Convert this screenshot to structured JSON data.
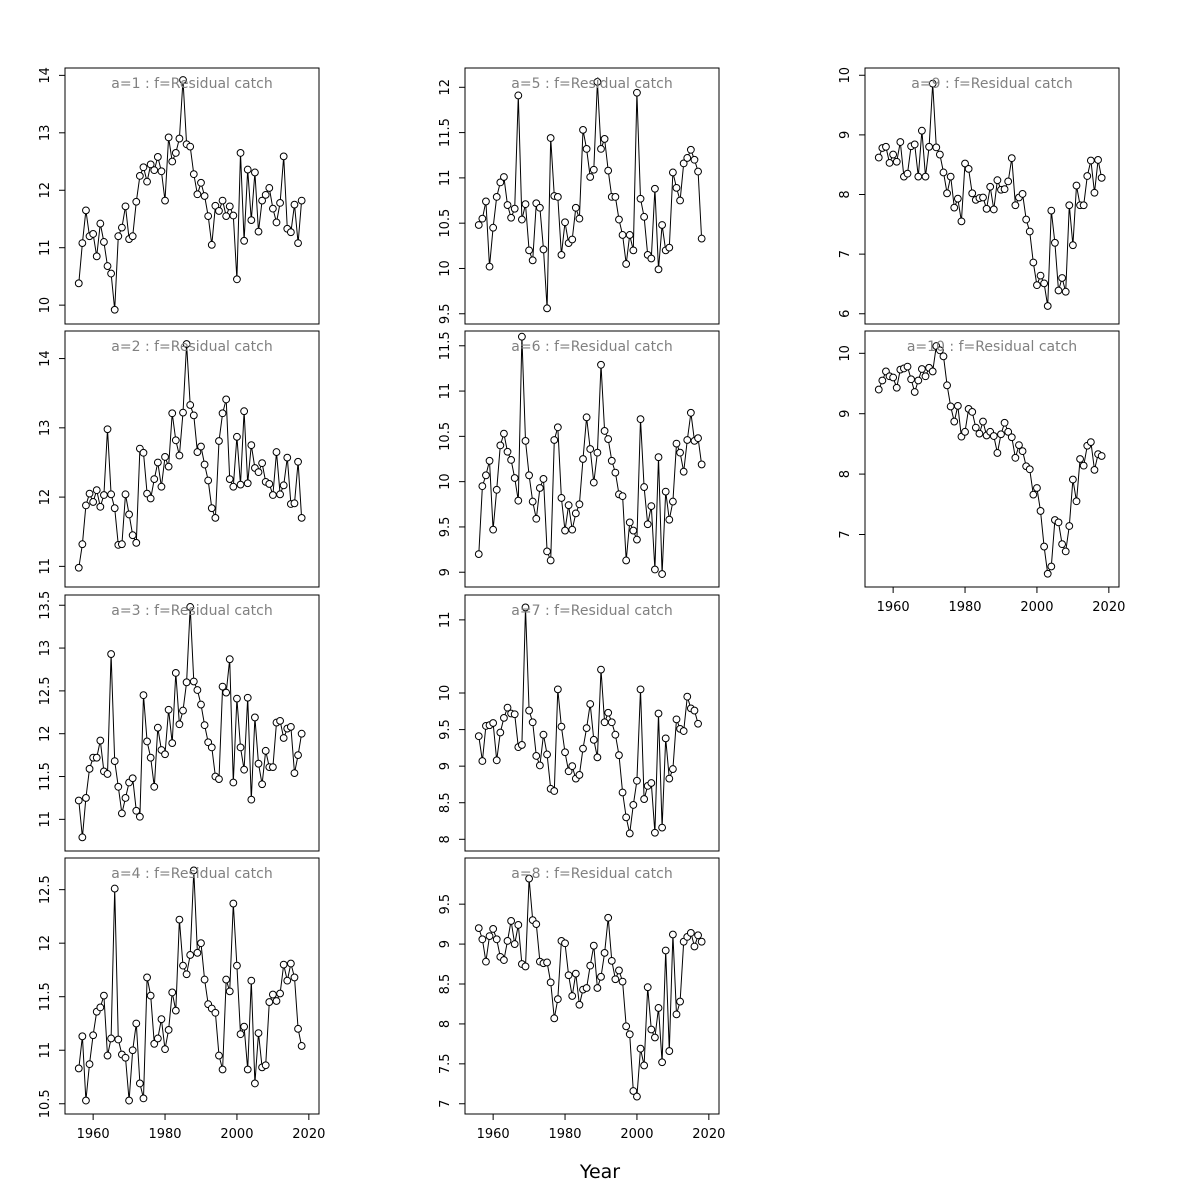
{
  "chart_data": {
    "type": "line",
    "xlabel": "Year",
    "xlim": [
      1955,
      2020
    ],
    "x_ticks": [
      1960,
      1980,
      2000,
      2020
    ],
    "panels": [
      {
        "title": "a=1  :  f=Residual catch",
        "ylim": [
          9.85,
          13.95
        ],
        "y_ticks": [
          10,
          11,
          12,
          13,
          14
        ],
        "values": [
          10.38,
          11.08,
          11.65,
          11.2,
          11.24,
          10.85,
          11.42,
          11.1,
          10.68,
          10.55,
          9.92,
          11.2,
          11.35,
          11.72,
          11.15,
          11.2,
          11.8,
          12.25,
          12.4,
          12.15,
          12.45,
          12.35,
          12.58,
          12.33,
          11.82,
          12.92,
          12.5,
          12.65,
          12.9,
          13.92,
          12.8,
          12.76,
          12.28,
          11.93,
          12.13,
          11.9,
          11.55,
          11.05,
          11.73,
          11.64,
          11.82,
          11.55,
          11.72,
          11.56,
          10.45,
          12.65,
          11.12,
          12.36,
          11.48,
          12.31,
          11.28,
          11.82,
          11.92,
          12.04,
          11.68,
          11.44,
          11.78,
          12.59,
          11.33,
          11.27,
          11.75,
          11.08,
          11.82
        ]
      },
      {
        "title": "a=2  :  f=Residual catch",
        "ylim": [
          10.85,
          14.25
        ],
        "y_ticks": [
          11.0,
          12.0,
          13.0,
          14.0
        ],
        "values": [
          10.98,
          11.32,
          11.88,
          12.05,
          11.93,
          12.1,
          11.86,
          12.03,
          12.98,
          12.04,
          11.84,
          11.31,
          11.32,
          12.04,
          11.75,
          11.45,
          11.34,
          12.7,
          12.64,
          12.05,
          11.98,
          12.26,
          12.5,
          12.15,
          12.58,
          12.44,
          13.21,
          12.82,
          12.6,
          13.22,
          14.21,
          13.33,
          13.18,
          12.65,
          12.73,
          12.47,
          12.24,
          11.84,
          11.7,
          12.81,
          13.21,
          13.41,
          12.26,
          12.15,
          12.87,
          12.18,
          13.24,
          12.2,
          12.75,
          12.42,
          12.36,
          12.49,
          12.22,
          12.19,
          12.03,
          12.65,
          12.04,
          12.17,
          12.57,
          11.9,
          11.91,
          12.51,
          11.7
        ]
      },
      {
        "title": "a=3  :  f=Residual catch",
        "ylim": [
          10.75,
          13.5
        ],
        "y_ticks": [
          11.0,
          11.5,
          12.0,
          12.5,
          13.0,
          13.5
        ],
        "values": [
          11.22,
          10.79,
          11.25,
          11.59,
          11.72,
          11.72,
          11.92,
          11.56,
          11.53,
          12.93,
          11.68,
          11.38,
          11.07,
          11.25,
          11.43,
          11.48,
          11.1,
          11.03,
          12.45,
          11.91,
          11.72,
          11.38,
          12.07,
          11.81,
          11.76,
          12.28,
          11.89,
          12.71,
          12.11,
          12.27,
          12.6,
          13.48,
          12.61,
          12.51,
          12.34,
          12.1,
          11.9,
          11.84,
          11.5,
          11.47,
          12.55,
          12.48,
          12.87,
          11.43,
          12.41,
          11.84,
          11.58,
          12.42,
          11.23,
          12.19,
          11.65,
          11.41,
          11.8,
          11.61,
          11.61,
          12.13,
          12.15,
          11.95,
          12.06,
          12.08,
          11.54,
          11.75,
          12.0
        ]
      },
      {
        "title": "a=4  :  f=Residual catch",
        "ylim": [
          10.5,
          12.7
        ],
        "y_ticks": [
          10.5,
          11.0,
          11.5,
          12.0,
          12.5
        ],
        "values": [
          10.83,
          11.13,
          10.53,
          10.87,
          11.14,
          11.36,
          11.4,
          11.51,
          10.95,
          11.11,
          12.51,
          11.1,
          10.96,
          10.93,
          10.53,
          11.0,
          11.25,
          10.69,
          10.55,
          11.68,
          11.51,
          11.06,
          11.11,
          11.29,
          11.01,
          11.19,
          11.54,
          11.37,
          12.22,
          11.79,
          11.71,
          11.89,
          12.68,
          11.91,
          12.0,
          11.66,
          11.43,
          11.39,
          11.35,
          10.95,
          10.82,
          11.66,
          11.55,
          12.37,
          11.79,
          11.15,
          11.22,
          10.82,
          11.65,
          10.69,
          11.16,
          10.84,
          10.86,
          11.45,
          11.52,
          11.46,
          11.53,
          11.8,
          11.65,
          11.81,
          11.68,
          11.2,
          11.04
        ]
      },
      {
        "title": "a=5  :  f=Residual catch",
        "ylim": [
          9.5,
          12.1
        ],
        "y_ticks": [
          9.5,
          10.0,
          10.5,
          11.0,
          11.5,
          12.0
        ],
        "values": [
          10.48,
          10.55,
          10.74,
          10.02,
          10.45,
          10.79,
          10.95,
          11.01,
          10.7,
          10.56,
          10.66,
          11.91,
          10.54,
          10.71,
          10.2,
          10.09,
          10.72,
          10.67,
          10.21,
          9.56,
          11.44,
          10.8,
          10.79,
          10.15,
          10.51,
          10.28,
          10.32,
          10.67,
          10.55,
          11.53,
          11.32,
          11.01,
          11.09,
          12.06,
          11.32,
          11.43,
          11.08,
          10.79,
          10.79,
          10.54,
          10.37,
          10.05,
          10.37,
          10.2,
          11.94,
          10.77,
          10.57,
          10.15,
          10.11,
          10.88,
          9.99,
          10.48,
          10.2,
          10.23,
          11.06,
          10.89,
          10.75,
          11.16,
          11.22,
          11.31,
          11.2,
          11.07,
          10.33
        ]
      },
      {
        "title": "a=6  :  f=Residual catch",
        "ylim": [
          8.95,
          11.55
        ],
        "y_ticks": [
          9.0,
          9.5,
          10.0,
          10.5,
          11.0,
          11.5
        ],
        "values": [
          9.2,
          9.95,
          10.07,
          10.23,
          9.47,
          9.91,
          10.4,
          10.53,
          10.33,
          10.24,
          10.04,
          9.79,
          11.6,
          10.45,
          10.07,
          9.78,
          9.59,
          9.93,
          10.03,
          9.23,
          9.13,
          10.46,
          10.6,
          9.82,
          9.46,
          9.74,
          9.47,
          9.65,
          9.75,
          10.25,
          10.71,
          10.36,
          9.99,
          10.32,
          11.29,
          10.56,
          10.47,
          10.23,
          10.1,
          9.86,
          9.84,
          9.13,
          9.55,
          9.46,
          9.36,
          10.69,
          9.94,
          9.53,
          9.73,
          9.03,
          10.27,
          8.98,
          9.89,
          9.58,
          9.78,
          10.42,
          10.32,
          10.11,
          10.46,
          10.76,
          10.45,
          10.48,
          10.19
        ]
      },
      {
        "title": "a=7  :  f=Residual catch",
        "ylim": [
          7.98,
          11.2
        ],
        "y_ticks": [
          8.0,
          8.5,
          9.0,
          9.5,
          10.0,
          11.0
        ],
        "values": [
          9.41,
          9.07,
          9.55,
          9.56,
          9.59,
          9.08,
          9.46,
          9.66,
          9.8,
          9.72,
          9.71,
          9.26,
          9.29,
          11.17,
          9.76,
          9.6,
          9.14,
          9.01,
          9.43,
          9.16,
          8.69,
          8.66,
          10.05,
          9.54,
          9.19,
          8.93,
          9.0,
          8.83,
          8.88,
          9.24,
          9.52,
          9.85,
          9.36,
          9.12,
          10.32,
          9.6,
          9.73,
          9.6,
          9.43,
          9.15,
          8.64,
          8.3,
          8.08,
          8.47,
          8.8,
          10.05,
          8.55,
          8.73,
          8.77,
          8.09,
          9.72,
          8.16,
          9.38,
          8.83,
          8.96,
          9.64,
          9.51,
          9.48,
          9.95,
          9.79,
          9.76,
          9.58
        ]
      },
      {
        "title": "a=8  :  f=Residual catch",
        "ylim": [
          7.0,
          9.95
        ],
        "y_ticks": [
          7.0,
          7.5,
          8.0,
          8.5,
          9.0,
          9.5
        ],
        "values": [
          9.2,
          9.06,
          8.78,
          9.1,
          9.19,
          9.06,
          8.84,
          8.8,
          9.04,
          9.29,
          9.0,
          9.24,
          8.75,
          8.72,
          9.82,
          9.3,
          9.25,
          8.78,
          8.76,
          8.77,
          8.52,
          8.07,
          8.31,
          9.04,
          9.01,
          8.61,
          8.35,
          8.63,
          8.24,
          8.43,
          8.45,
          8.73,
          8.98,
          8.45,
          8.59,
          8.89,
          9.33,
          8.79,
          8.56,
          8.67,
          8.53,
          7.97,
          7.87,
          7.16,
          7.09,
          7.69,
          7.48,
          8.46,
          7.93,
          7.83,
          8.2,
          7.52,
          8.92,
          7.66,
          9.12,
          8.12,
          8.28,
          9.03,
          9.09,
          9.14,
          8.97,
          9.11,
          9.03
        ]
      },
      {
        "title": "a=9  :  f=Residual catch",
        "ylim": [
          6.0,
          9.95
        ],
        "y_ticks": [
          6,
          7,
          8,
          9,
          10
        ],
        "values": [
          8.62,
          8.78,
          8.8,
          8.53,
          8.67,
          8.55,
          8.88,
          8.3,
          8.35,
          8.81,
          8.84,
          8.3,
          9.07,
          8.3,
          8.8,
          9.86,
          8.79,
          8.67,
          8.37,
          8.02,
          8.3,
          7.78,
          7.93,
          7.55,
          8.52,
          8.43,
          8.02,
          7.91,
          7.94,
          7.95,
          7.76,
          8.13,
          7.75,
          8.24,
          8.08,
          8.09,
          8.22,
          8.61,
          7.82,
          7.95,
          8.01,
          7.58,
          7.38,
          6.86,
          6.48,
          6.64,
          6.51,
          6.13,
          7.73,
          7.19,
          6.39,
          6.6,
          6.37,
          7.82,
          7.15,
          8.15,
          7.82,
          7.82,
          8.31,
          8.57,
          8.03,
          8.58,
          8.28
        ]
      },
      {
        "title": "a=10  :  f=Residual catch",
        "ylim": [
          6.3,
          10.2
        ],
        "y_ticks": [
          7,
          8,
          9,
          10
        ],
        "values": [
          9.4,
          9.55,
          9.7,
          9.62,
          9.6,
          9.43,
          9.73,
          9.75,
          9.78,
          9.57,
          9.36,
          9.55,
          9.74,
          9.62,
          9.76,
          9.7,
          10.12,
          10.05,
          9.95,
          9.47,
          9.12,
          8.87,
          9.13,
          8.62,
          8.7,
          9.08,
          9.03,
          8.77,
          8.67,
          8.87,
          8.64,
          8.7,
          8.63,
          8.35,
          8.66,
          8.85,
          8.7,
          8.61,
          8.27,
          8.48,
          8.38,
          8.13,
          8.08,
          7.66,
          7.77,
          7.39,
          6.8,
          6.35,
          6.47,
          7.24,
          7.2,
          6.84,
          6.72,
          7.14,
          7.91,
          7.55,
          8.25,
          8.14,
          8.47,
          8.53,
          8.07,
          8.33,
          8.3
        ]
      }
    ]
  }
}
